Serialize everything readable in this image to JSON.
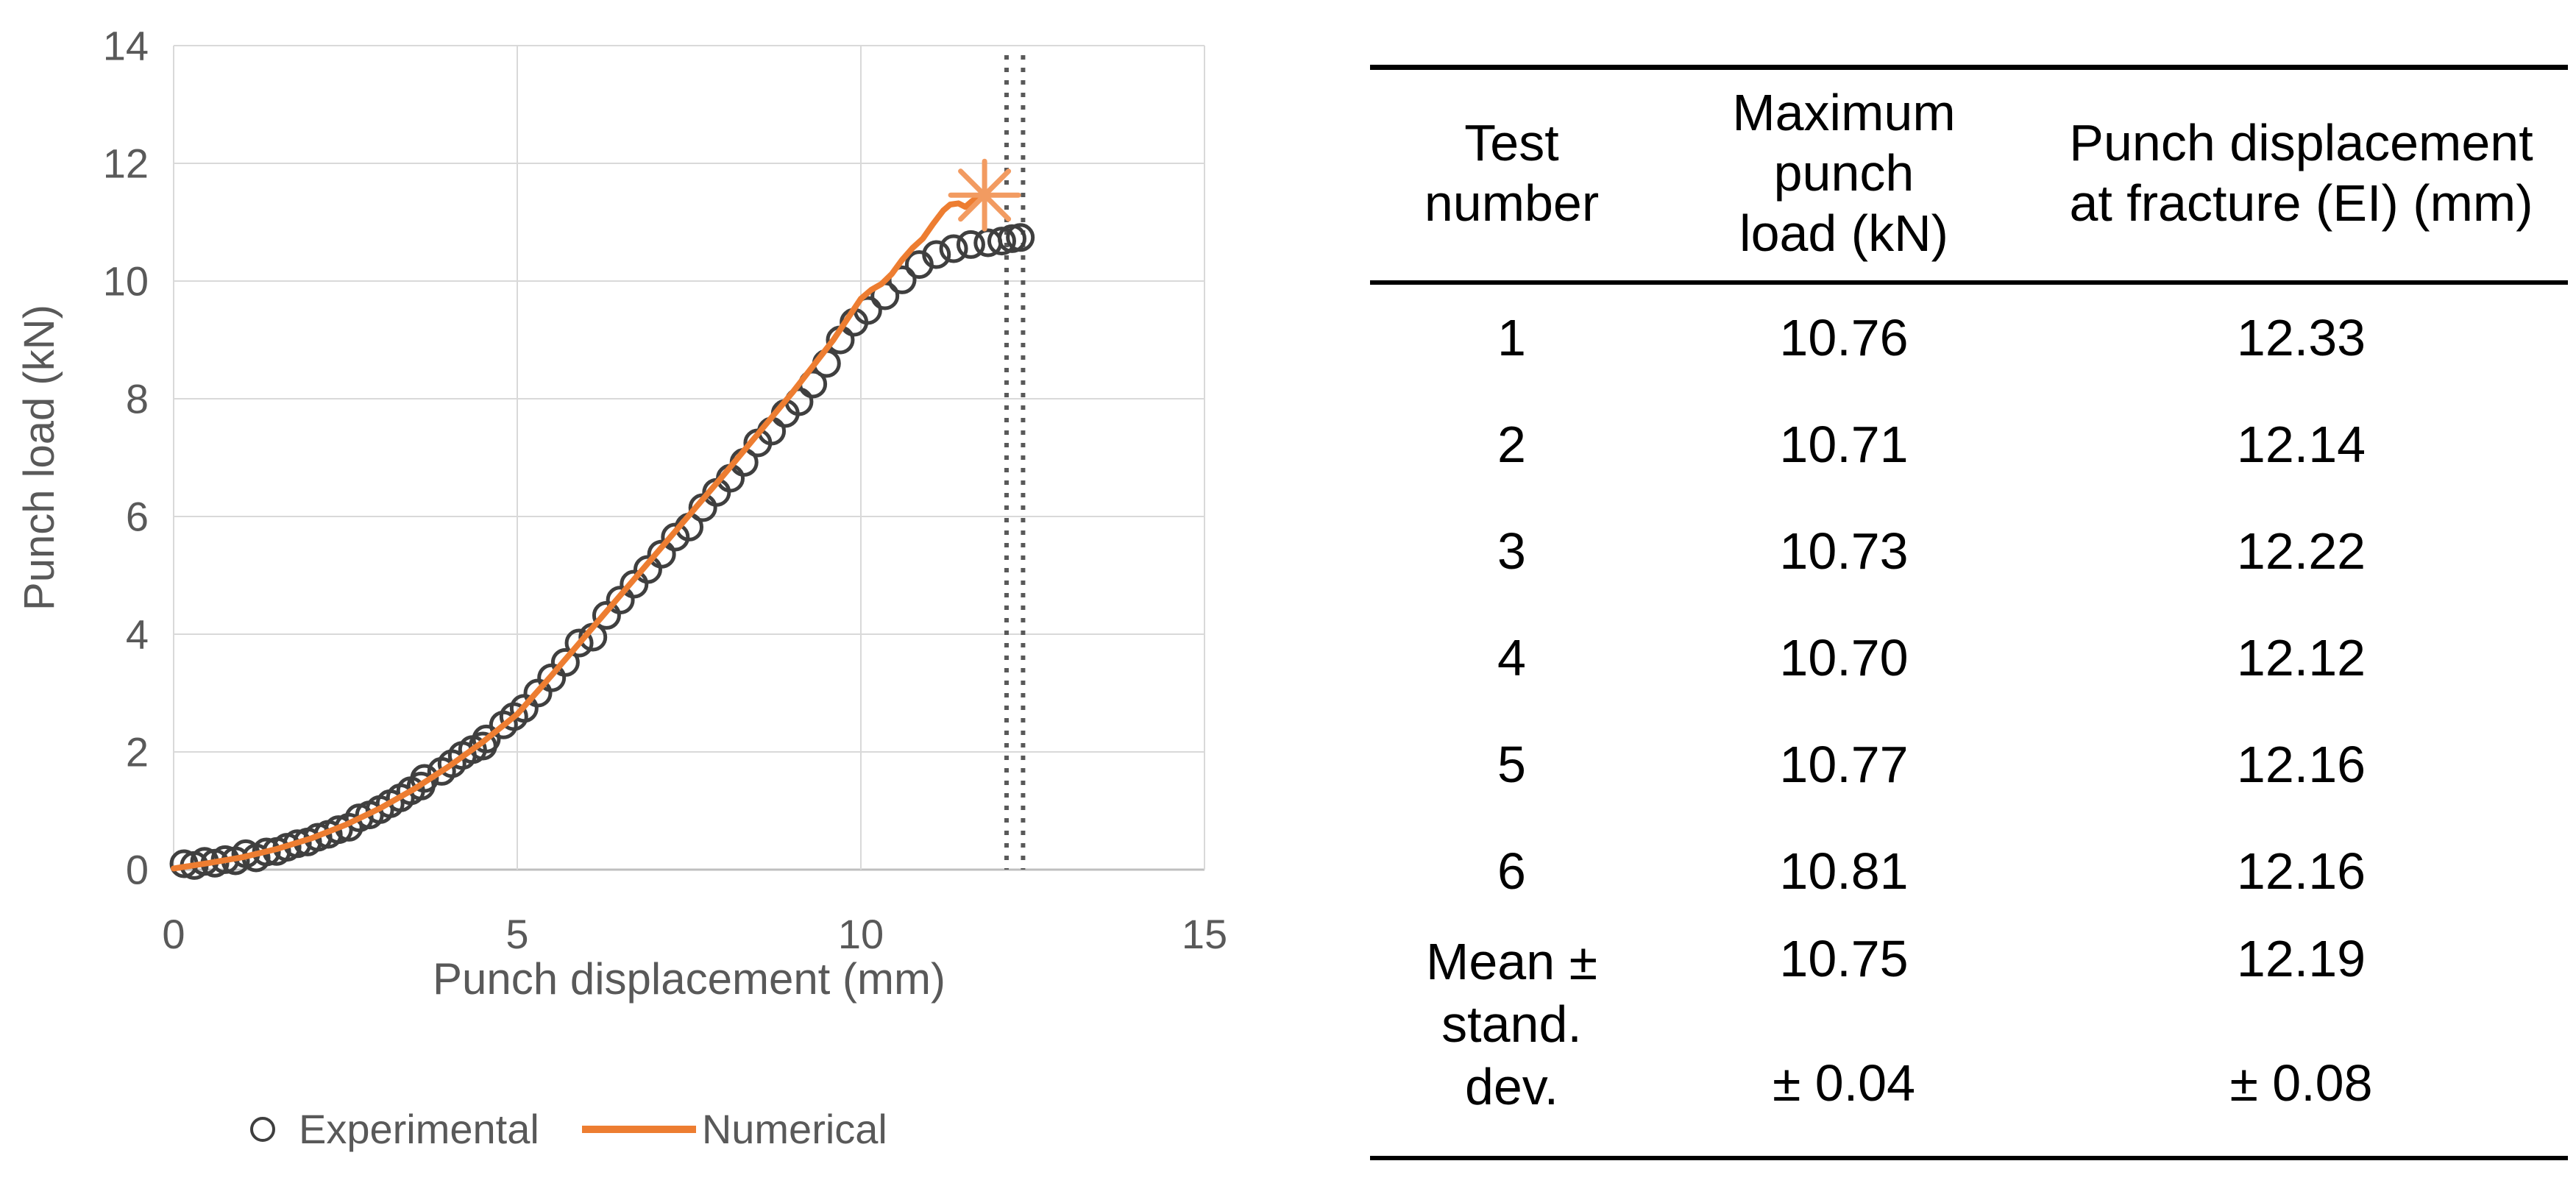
{
  "chart": {
    "legend_experimental": "Experimental",
    "legend_numerical": "Numerical",
    "colors": {
      "numerical_line": "#ED7D31",
      "numerical_star": "#F29B61",
      "experimental_marker": "#3f3f3f",
      "gridline": "#d9d9d9",
      "axis_line": "#bfbfbf",
      "dotted_line": "#595959",
      "text": "#595959"
    }
  },
  "chart_data": {
    "type": "scatter",
    "title": "",
    "xlabel": "Punch displacement (mm)",
    "ylabel": "Punch load (kN)",
    "xlim": [
      0,
      15
    ],
    "ylim": [
      0,
      14
    ],
    "x_ticks": [
      0,
      5,
      10,
      15
    ],
    "y_ticks": [
      0,
      2,
      4,
      6,
      8,
      10,
      12,
      14
    ],
    "grid": true,
    "legend_position": "bottom",
    "series": [
      {
        "name": "Experimental",
        "type": "scatter",
        "marker": "open-circle",
        "color": "#3f3f3f",
        "points": [
          [
            0.15,
            0.1
          ],
          [
            0.3,
            0.07
          ],
          [
            0.45,
            0.14
          ],
          [
            0.6,
            0.11
          ],
          [
            0.75,
            0.17
          ],
          [
            0.9,
            0.15
          ],
          [
            1.05,
            0.27
          ],
          [
            1.2,
            0.2
          ],
          [
            1.35,
            0.3
          ],
          [
            1.5,
            0.31
          ],
          [
            1.65,
            0.38
          ],
          [
            1.8,
            0.44
          ],
          [
            1.95,
            0.47
          ],
          [
            2.1,
            0.55
          ],
          [
            2.25,
            0.6
          ],
          [
            2.4,
            0.68
          ],
          [
            2.55,
            0.72
          ],
          [
            2.7,
            0.88
          ],
          [
            2.85,
            0.93
          ],
          [
            3.0,
            1.02
          ],
          [
            3.15,
            1.12
          ],
          [
            3.3,
            1.22
          ],
          [
            3.45,
            1.34
          ],
          [
            3.6,
            1.42
          ],
          [
            3.65,
            1.55
          ],
          [
            3.9,
            1.67
          ],
          [
            4.05,
            1.8
          ],
          [
            4.2,
            1.94
          ],
          [
            4.35,
            2.04
          ],
          [
            4.5,
            2.1
          ],
          [
            4.55,
            2.22
          ],
          [
            4.8,
            2.46
          ],
          [
            4.95,
            2.6
          ],
          [
            5.1,
            2.74
          ],
          [
            5.3,
            3.0
          ],
          [
            5.5,
            3.26
          ],
          [
            5.7,
            3.52
          ],
          [
            5.9,
            3.85
          ],
          [
            6.1,
            3.95
          ],
          [
            6.3,
            4.32
          ],
          [
            6.5,
            4.58
          ],
          [
            6.7,
            4.85
          ],
          [
            6.9,
            5.1
          ],
          [
            7.1,
            5.36
          ],
          [
            7.3,
            5.65
          ],
          [
            7.5,
            5.82
          ],
          [
            7.7,
            6.15
          ],
          [
            7.9,
            6.41
          ],
          [
            8.1,
            6.65
          ],
          [
            8.3,
            6.92
          ],
          [
            8.5,
            7.25
          ],
          [
            8.7,
            7.45
          ],
          [
            8.9,
            7.75
          ],
          [
            9.1,
            7.95
          ],
          [
            9.3,
            8.25
          ],
          [
            9.5,
            8.6
          ],
          [
            9.7,
            9.0
          ],
          [
            9.9,
            9.3
          ],
          [
            10.1,
            9.5
          ],
          [
            10.35,
            9.75
          ],
          [
            10.6,
            10.02
          ],
          [
            10.85,
            10.28
          ],
          [
            11.1,
            10.45
          ],
          [
            11.35,
            10.55
          ],
          [
            11.6,
            10.62
          ],
          [
            11.85,
            10.65
          ],
          [
            12.05,
            10.68
          ],
          [
            12.2,
            10.72
          ],
          [
            12.32,
            10.74
          ]
        ]
      },
      {
        "name": "Numerical",
        "type": "line",
        "color": "#ED7D31",
        "points": [
          [
            0,
            0.02
          ],
          [
            0.5,
            0.11
          ],
          [
            1,
            0.21
          ],
          [
            1.5,
            0.35
          ],
          [
            2,
            0.53
          ],
          [
            2.5,
            0.76
          ],
          [
            3,
            1.04
          ],
          [
            3.5,
            1.37
          ],
          [
            4,
            1.75
          ],
          [
            4.5,
            2.17
          ],
          [
            5,
            2.64
          ],
          [
            5.5,
            3.3
          ],
          [
            6,
            3.98
          ],
          [
            6.5,
            4.66
          ],
          [
            7,
            5.34
          ],
          [
            7.5,
            6.02
          ],
          [
            8,
            6.7
          ],
          [
            8.5,
            7.4
          ],
          [
            9,
            8.1
          ],
          [
            9.3,
            8.55
          ],
          [
            9.6,
            9.0
          ],
          [
            9.8,
            9.35
          ],
          [
            10,
            9.7
          ],
          [
            10.15,
            9.85
          ],
          [
            10.3,
            9.95
          ],
          [
            10.45,
            10.12
          ],
          [
            10.6,
            10.36
          ],
          [
            10.75,
            10.56
          ],
          [
            10.9,
            10.72
          ],
          [
            11.05,
            10.97
          ],
          [
            11.2,
            11.2
          ],
          [
            11.3,
            11.3
          ],
          [
            11.42,
            11.32
          ],
          [
            11.52,
            11.26
          ],
          [
            11.62,
            11.36
          ],
          [
            11.72,
            11.43
          ],
          [
            11.8,
            11.46
          ]
        ],
        "end_marker": {
          "type": "asterisk",
          "x": 11.8,
          "y": 11.46,
          "color": "#F29B61"
        }
      }
    ],
    "annotations": {
      "vertical_dotted_lines_x": [
        12.12,
        12.36
      ]
    }
  },
  "table": {
    "headers": [
      {
        "lines": [
          "Test",
          "number"
        ]
      },
      {
        "lines": [
          "Maximum",
          "punch",
          "load (kN)"
        ]
      },
      {
        "lines": [
          "Punch displacement",
          "at fracture (EI) (mm)"
        ]
      }
    ],
    "rows": [
      {
        "test": "1",
        "max_load": "10.76",
        "displacement": "12.33"
      },
      {
        "test": "2",
        "max_load": "10.71",
        "displacement": "12.14"
      },
      {
        "test": "3",
        "max_load": "10.73",
        "displacement": "12.22"
      },
      {
        "test": "4",
        "max_load": "10.70",
        "displacement": "12.12"
      },
      {
        "test": "5",
        "max_load": "10.77",
        "displacement": "12.16"
      },
      {
        "test": "6",
        "max_load": "10.81",
        "displacement": "12.16"
      }
    ],
    "mean_row": {
      "label_lines": [
        "Mean ±",
        "stand.",
        "dev."
      ],
      "max_load": "10.75",
      "max_load_err": "± 0.04",
      "displacement": "12.19",
      "displacement_err": "± 0.08"
    }
  }
}
